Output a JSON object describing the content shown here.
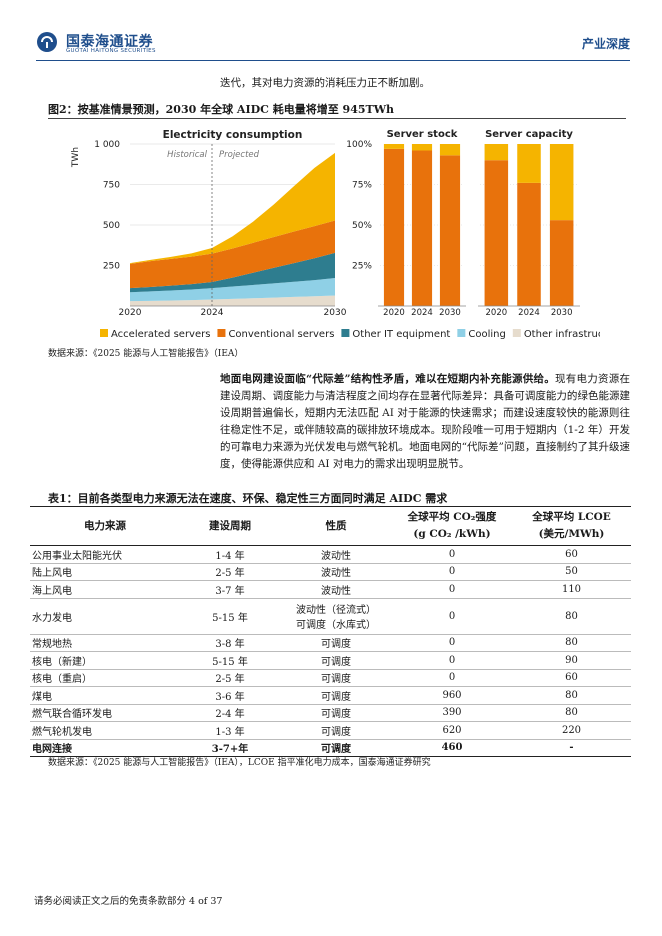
{
  "header": {
    "brand": "国泰海通证券",
    "brand_en": "GUOTAI HAITONG SECURITIES",
    "section": "产业深度"
  },
  "intro_line": "迭代，其对电力资源的消耗压力正不断加剧。",
  "figure": {
    "title": "图2：按基准情景预测，2030 年全球 AIDC 耗电量将增至 945TWh",
    "source": "数据来源：《2025 能源与人工智能报告》（IEA）",
    "legend": [
      {
        "label": "Accelerated servers",
        "color": "#f5b400"
      },
      {
        "label": "Conventional servers",
        "color": "#e8720c"
      },
      {
        "label": "Other IT equipment",
        "color": "#2e7d8f"
      },
      {
        "label": "Cooling",
        "color": "#8fd0e6"
      },
      {
        "label": "Other infrastructure",
        "color": "#e6dccd"
      }
    ]
  },
  "chart_data": [
    {
      "type": "area",
      "title": "Electricity consumption",
      "ylabel": "TWh",
      "ylim": [
        0,
        1000
      ],
      "yticks": [
        "250",
        "500",
        "750",
        "1 000"
      ],
      "xticks": [
        "2020",
        "2024",
        "2030"
      ],
      "annotations": [
        "Historical",
        "Projected"
      ],
      "x": [
        2020,
        2021,
        2022,
        2023,
        2024,
        2025,
        2026,
        2027,
        2028,
        2029,
        2030
      ],
      "series": [
        {
          "name": "Other infrastructure",
          "values": [
            30,
            32,
            34,
            36,
            40,
            44,
            48,
            52,
            56,
            60,
            65
          ]
        },
        {
          "name": "Cooling",
          "values": [
            55,
            58,
            62,
            66,
            70,
            76,
            82,
            88,
            94,
            100,
            108
          ]
        },
        {
          "name": "Other IT equipment",
          "values": [
            25,
            27,
            30,
            33,
            38,
            55,
            75,
            95,
            115,
            135,
            155
          ]
        },
        {
          "name": "Conventional servers",
          "values": [
            150,
            160,
            165,
            170,
            175,
            180,
            185,
            190,
            195,
            198,
            200
          ]
        },
        {
          "name": "Accelerated servers",
          "values": [
            5,
            8,
            12,
            20,
            35,
            75,
            130,
            200,
            280,
            360,
            417
          ]
        }
      ]
    },
    {
      "type": "bar",
      "title": "Server stock",
      "ylim": [
        0,
        100
      ],
      "yticks": [
        "25%",
        "50%",
        "75%",
        "100%"
      ],
      "categories": [
        "2020",
        "2024",
        "2030"
      ],
      "series": [
        {
          "name": "Conventional servers",
          "values": [
            97,
            96,
            93
          ]
        },
        {
          "name": "Accelerated servers",
          "values": [
            3,
            4,
            7
          ]
        }
      ]
    },
    {
      "type": "bar",
      "title": "Server capacity",
      "ylim": [
        0,
        100
      ],
      "categories": [
        "2020",
        "2024",
        "2030"
      ],
      "series": [
        {
          "name": "Conventional servers",
          "values": [
            90,
            76,
            53
          ]
        },
        {
          "name": "Accelerated servers",
          "values": [
            10,
            24,
            47
          ]
        }
      ]
    }
  ],
  "paragraph": {
    "lead": "地面电网建设面临“代际差”结构性矛盾，难以在短期内补充能源供给。",
    "body": "现有电力资源在建设周期、调度能力与清洁程度之间均存在显著代际差异：具备可调度能力的绿色能源建设周期普遍偏长，短期内无法匹配 AI 对于能源的快速需求；而建设速度较快的能源则往往稳定性不足，或伴随较高的碳排放环境成本。现阶段唯一可用于短期内（1-2 年）开发的可靠电力来源为光伏发电与燃气轮机。地面电网的“代际差”问题，直接制约了其升级速度，使得能源供应和 AI 对电力的需求出现明显脱节。"
  },
  "table": {
    "title": "表1：目前各类型电力来源无法在速度、环保、稳定性三方面同时满足 AIDC 需求",
    "headers": [
      "电力来源",
      "建设周期",
      "性质",
      "全球平均 CO₂强度",
      "(g CO₂ /kWh)",
      "全球平均 LCOE",
      "(美元/MWh)"
    ],
    "rows": [
      [
        "公用事业太阳能光伏",
        "1-4 年",
        "波动性",
        "",
        "0",
        "60"
      ],
      [
        "陆上风电",
        "2-5 年",
        "波动性",
        "",
        "0",
        "50"
      ],
      [
        "海上风电",
        "3-7 年",
        "波动性",
        "",
        "0",
        "110"
      ],
      [
        "水力发电",
        "5-15 年",
        "波动性（径流式）",
        "可调度（水库式）",
        "0",
        "80"
      ],
      [
        "常规地热",
        "3-8 年",
        "可调度",
        "",
        "0",
        "80"
      ],
      [
        "核电（新建）",
        "5-15 年",
        "可调度",
        "",
        "0",
        "90"
      ],
      [
        "核电（重启）",
        "2-5 年",
        "可调度",
        "",
        "0",
        "60"
      ],
      [
        "煤电",
        "3-6 年",
        "可调度",
        "",
        "960",
        "80"
      ],
      [
        "燃气联合循环发电",
        "2-4 年",
        "可调度",
        "",
        "390",
        "80"
      ],
      [
        "燃气轮机发电",
        "1-3 年",
        "可调度",
        "",
        "620",
        "220"
      ],
      [
        "电网连接",
        "3-7+年",
        "可调度",
        "",
        "460",
        "-"
      ]
    ],
    "source": "数据来源：《2025 能源与人工智能报告》（IEA），LCOE 指平准化电力成本，国泰海通证券研究"
  },
  "footer": "请务必阅读正文之后的免责条款部分 4 of 37"
}
